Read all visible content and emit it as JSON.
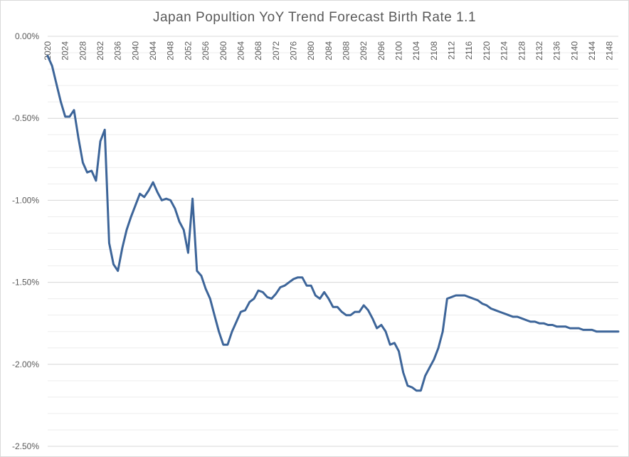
{
  "chart_data": {
    "type": "line",
    "title": "Japan Popultion YoY Trend Forecast Birth Rate 1.1",
    "xlabel": "",
    "ylabel": "",
    "ylim": [
      -0.025,
      0.0
    ],
    "y_ticks": [
      0.0,
      -0.005,
      -0.01,
      -0.015,
      -0.02,
      -0.025
    ],
    "y_tick_labels": [
      "0.00%",
      "-0.50%",
      "-1.00%",
      "-1.50%",
      "-2.00%",
      "-2.50%"
    ],
    "xlim": [
      2020,
      2150
    ],
    "x_ticks": [
      2020,
      2024,
      2028,
      2032,
      2036,
      2040,
      2044,
      2048,
      2052,
      2056,
      2060,
      2064,
      2068,
      2072,
      2076,
      2080,
      2084,
      2088,
      2092,
      2096,
      2100,
      2104,
      2108,
      2112,
      2116,
      2120,
      2124,
      2128,
      2132,
      2136,
      2140,
      2144,
      2148
    ],
    "x_tick_labels": [
      "2020",
      "2024",
      "2028",
      "2032",
      "2036",
      "2040",
      "2044",
      "2048",
      "2052",
      "2056",
      "2060",
      "2064",
      "2068",
      "2072",
      "2076",
      "2080",
      "2084",
      "2088",
      "2092",
      "2096",
      "2100",
      "2104",
      "2108",
      "2112",
      "2116",
      "2120",
      "2124",
      "2128",
      "2132",
      "2136",
      "2140",
      "2144",
      "2148"
    ],
    "grid": true,
    "legend": "none",
    "color": "#3d6599",
    "series": [
      {
        "x": [
          2020,
          2021,
          2022,
          2023,
          2024,
          2025,
          2026,
          2027,
          2028,
          2029,
          2030,
          2031,
          2032,
          2033,
          2034,
          2035,
          2036,
          2037,
          2038,
          2039,
          2040,
          2041,
          2042,
          2043,
          2044,
          2045,
          2046,
          2047,
          2048,
          2049,
          2050,
          2051,
          2052,
          2053,
          2054,
          2055,
          2056,
          2057,
          2058,
          2059,
          2060,
          2061,
          2062,
          2063,
          2064,
          2065,
          2066,
          2067,
          2068,
          2069,
          2070,
          2071,
          2072,
          2073,
          2074,
          2075,
          2076,
          2077,
          2078,
          2079,
          2080,
          2081,
          2082,
          2083,
          2084,
          2085,
          2086,
          2087,
          2088,
          2089,
          2090,
          2091,
          2092,
          2093,
          2094,
          2095,
          2096,
          2097,
          2098,
          2099,
          2100,
          2101,
          2102,
          2103,
          2104,
          2105,
          2106,
          2107,
          2108,
          2109,
          2110,
          2111,
          2112,
          2113,
          2114,
          2115,
          2116,
          2117,
          2118,
          2119,
          2120,
          2121,
          2122,
          2123,
          2124,
          2125,
          2126,
          2127,
          2128,
          2129,
          2130,
          2131,
          2132,
          2133,
          2134,
          2135,
          2136,
          2137,
          2138,
          2139,
          2140,
          2141,
          2142,
          2143,
          2144,
          2145,
          2146,
          2147,
          2148,
          2149,
          2150
        ],
        "values": [
          -0.0012,
          -0.0018,
          -0.0029,
          -0.004,
          -0.0049,
          -0.0049,
          -0.0045,
          -0.0062,
          -0.0077,
          -0.0083,
          -0.0082,
          -0.0088,
          -0.0064,
          -0.0057,
          -0.0126,
          -0.0139,
          -0.0143,
          -0.0129,
          -0.0118,
          -0.011,
          -0.0103,
          -0.0096,
          -0.0098,
          -0.0094,
          -0.0089,
          -0.0095,
          -0.01,
          -0.0099,
          -0.01,
          -0.0105,
          -0.0113,
          -0.0118,
          -0.0132,
          -0.0099,
          -0.0143,
          -0.0146,
          -0.0154,
          -0.016,
          -0.017,
          -0.018,
          -0.0188,
          -0.0188,
          -0.018,
          -0.0174,
          -0.0168,
          -0.0167,
          -0.0162,
          -0.016,
          -0.0155,
          -0.0156,
          -0.0159,
          -0.016,
          -0.0157,
          -0.0153,
          -0.0152,
          -0.015,
          -0.0148,
          -0.0147,
          -0.0147,
          -0.0152,
          -0.0152,
          -0.0158,
          -0.016,
          -0.0156,
          -0.016,
          -0.0165,
          -0.0165,
          -0.0168,
          -0.017,
          -0.017,
          -0.0168,
          -0.0168,
          -0.0164,
          -0.0167,
          -0.0172,
          -0.0178,
          -0.0176,
          -0.018,
          -0.0188,
          -0.0187,
          -0.0192,
          -0.0205,
          -0.0213,
          -0.0214,
          -0.0216,
          -0.0216,
          -0.0207,
          -0.0202,
          -0.0197,
          -0.019,
          -0.018,
          -0.016,
          -0.0159,
          -0.0158,
          -0.0158,
          -0.0158,
          -0.0159,
          -0.016,
          -0.0161,
          -0.0163,
          -0.0164,
          -0.0166,
          -0.0167,
          -0.0168,
          -0.0169,
          -0.017,
          -0.0171,
          -0.0171,
          -0.0172,
          -0.0173,
          -0.0174,
          -0.0174,
          -0.0175,
          -0.0175,
          -0.0176,
          -0.0176,
          -0.0177,
          -0.0177,
          -0.0177,
          -0.0178,
          -0.0178,
          -0.0178,
          -0.0179,
          -0.0179,
          -0.0179,
          -0.018,
          -0.018,
          -0.018,
          -0.018,
          -0.018,
          -0.018
        ]
      }
    ]
  }
}
